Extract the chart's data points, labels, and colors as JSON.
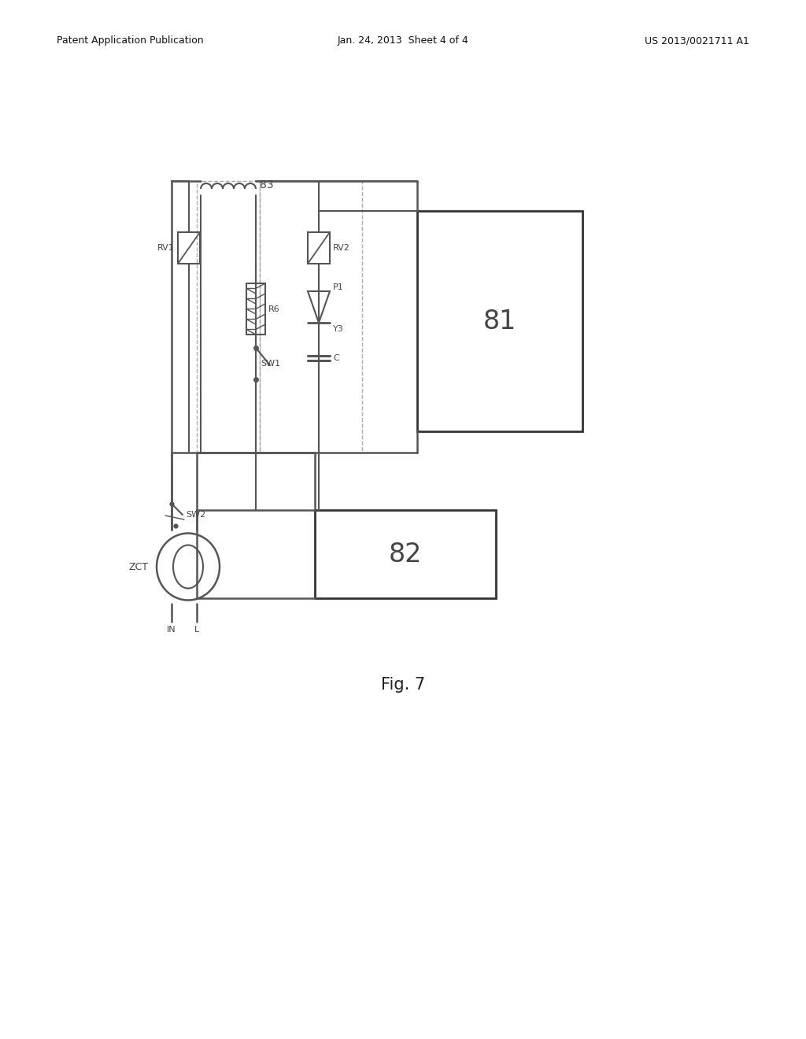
{
  "bg_color": "#ffffff",
  "header_left": "Patent Application Publication",
  "header_center": "Jan. 24, 2013  Sheet 4 of 4",
  "header_right": "US 2013/0021711 A1",
  "fig_label": "Fig. 7",
  "lc": "#555555",
  "dc": "#aaaaaa",
  "label_color": "#444444",
  "coil_label": "83",
  "box81_label": "81",
  "box82_label": "82",
  "rv1_label": "RV1",
  "rv2_label": "RV2",
  "r6_label": "R6",
  "sw1_label": "SW1",
  "sw2_label": "SW2",
  "p1_label": "P1",
  "y3_label": "Y3",
  "c_label": "C",
  "zct_label": "ZCT",
  "in_label": "IN",
  "n_label": "L"
}
